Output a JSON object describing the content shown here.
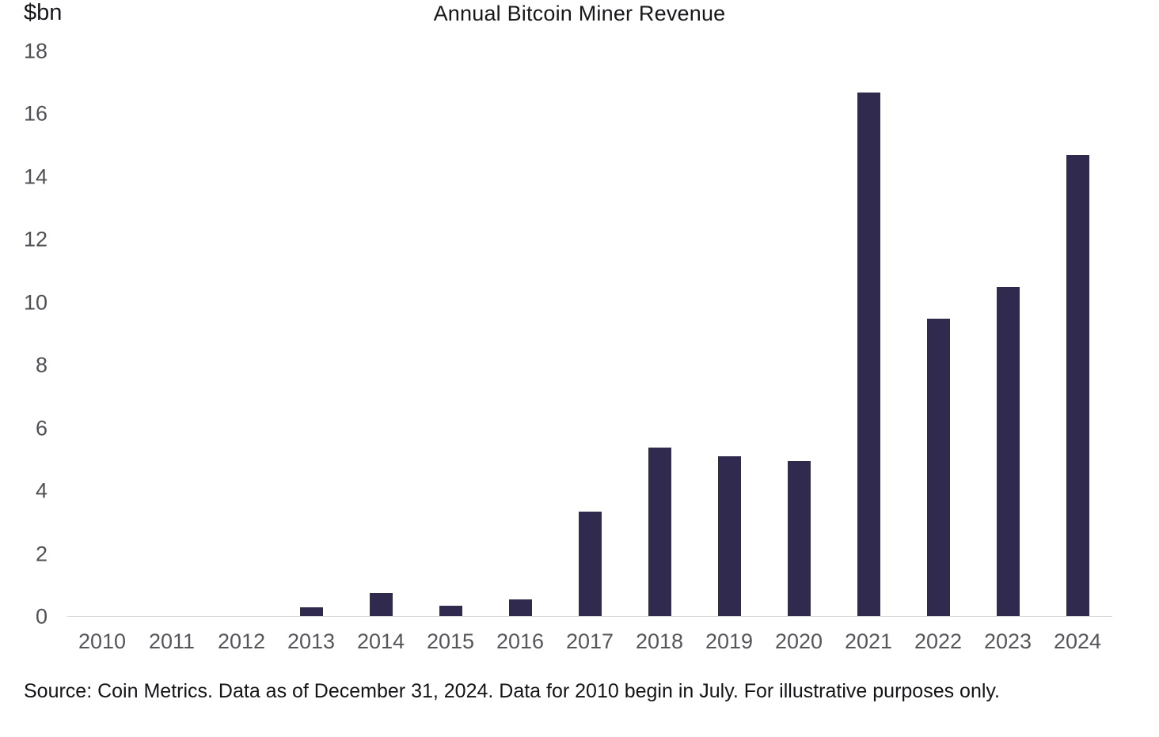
{
  "chart_data": {
    "type": "bar",
    "title": "Annual Bitcoin Miner Revenue",
    "ylabel": "$bn",
    "xlabel": "",
    "ylim": [
      0,
      18
    ],
    "yticks": [
      0,
      2,
      4,
      6,
      8,
      10,
      12,
      14,
      16,
      18
    ],
    "grid": false,
    "bar_color": "#2f2a4e",
    "categories": [
      "2010",
      "2011",
      "2012",
      "2013",
      "2014",
      "2015",
      "2016",
      "2017",
      "2018",
      "2019",
      "2020",
      "2021",
      "2022",
      "2023",
      "2024"
    ],
    "values": [
      0,
      0,
      0,
      0.3,
      0.75,
      0.35,
      0.55,
      3.35,
      5.4,
      5.1,
      4.95,
      16.7,
      9.5,
      10.5,
      14.7
    ]
  },
  "source_note": "Source: Coin Metrics. Data as of December 31, 2024. Data for 2010 begin in July. For illustrative purposes only."
}
